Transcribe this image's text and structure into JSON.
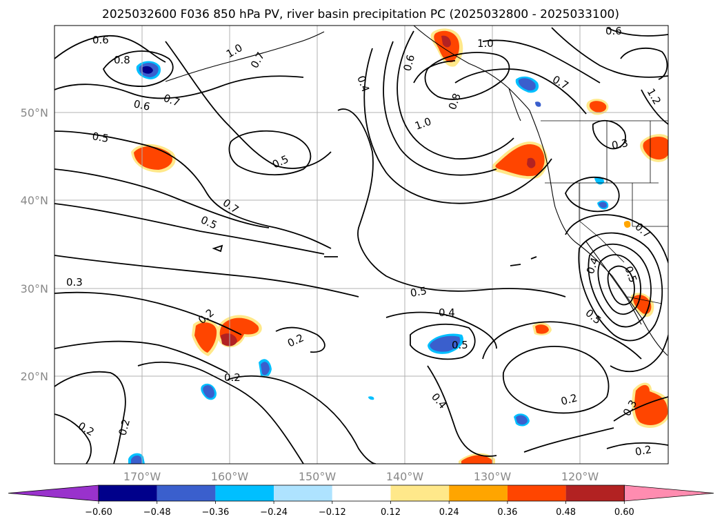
{
  "title": "2025032600 F036 850 hPa PV, river basin precipitation PC (2025032800 - 2025033100)",
  "lon_ticks": [
    "170°W",
    "160°W",
    "150°W",
    "140°W",
    "130°W",
    "120°W"
  ],
  "lat_ticks": [
    "50°N",
    "40°N",
    "30°N",
    "20°N"
  ],
  "contour_labels": [
    "0.6",
    "0.8",
    "0.7",
    "0.6",
    "0.5",
    "0.5",
    "0.7",
    "0.5",
    "0.3",
    "0.2",
    "0.2",
    "0.2",
    "0.2",
    "0.2",
    "1.0",
    "0.7",
    "0.4",
    "0.6",
    "0.8",
    "1.0",
    "1.0",
    "0.7",
    "0.6",
    "1.2",
    "0.5",
    "0.4",
    "0.5",
    "0.4",
    "0.5",
    "0.4",
    "0.2",
    "0.3",
    "0.2",
    "0.3",
    "0.5",
    "0.7"
  ],
  "colorbar": {
    "ticks": [
      "−0.60",
      "−0.48",
      "−0.36",
      "−0.24",
      "−0.12",
      "0.12",
      "0.24",
      "0.36",
      "0.48",
      "0.60"
    ],
    "under_color": "#9932cc",
    "over_color": "#ff8cb0",
    "bins": [
      "#00008b",
      "#3a5fcd",
      "#00bfff",
      "#aee3ff",
      "#ffffff",
      "#ffe88a",
      "#ffa500",
      "#ff4500",
      "#b22222"
    ]
  },
  "colors": {
    "neg_dark": "#00008b",
    "neg_mid": "#3a5fcd",
    "neg_light": "#00bfff",
    "pos_light": "#ffe88a",
    "pos_mid": "#ffa500",
    "pos_strong": "#ff4500",
    "pos_dark": "#b22222"
  }
}
